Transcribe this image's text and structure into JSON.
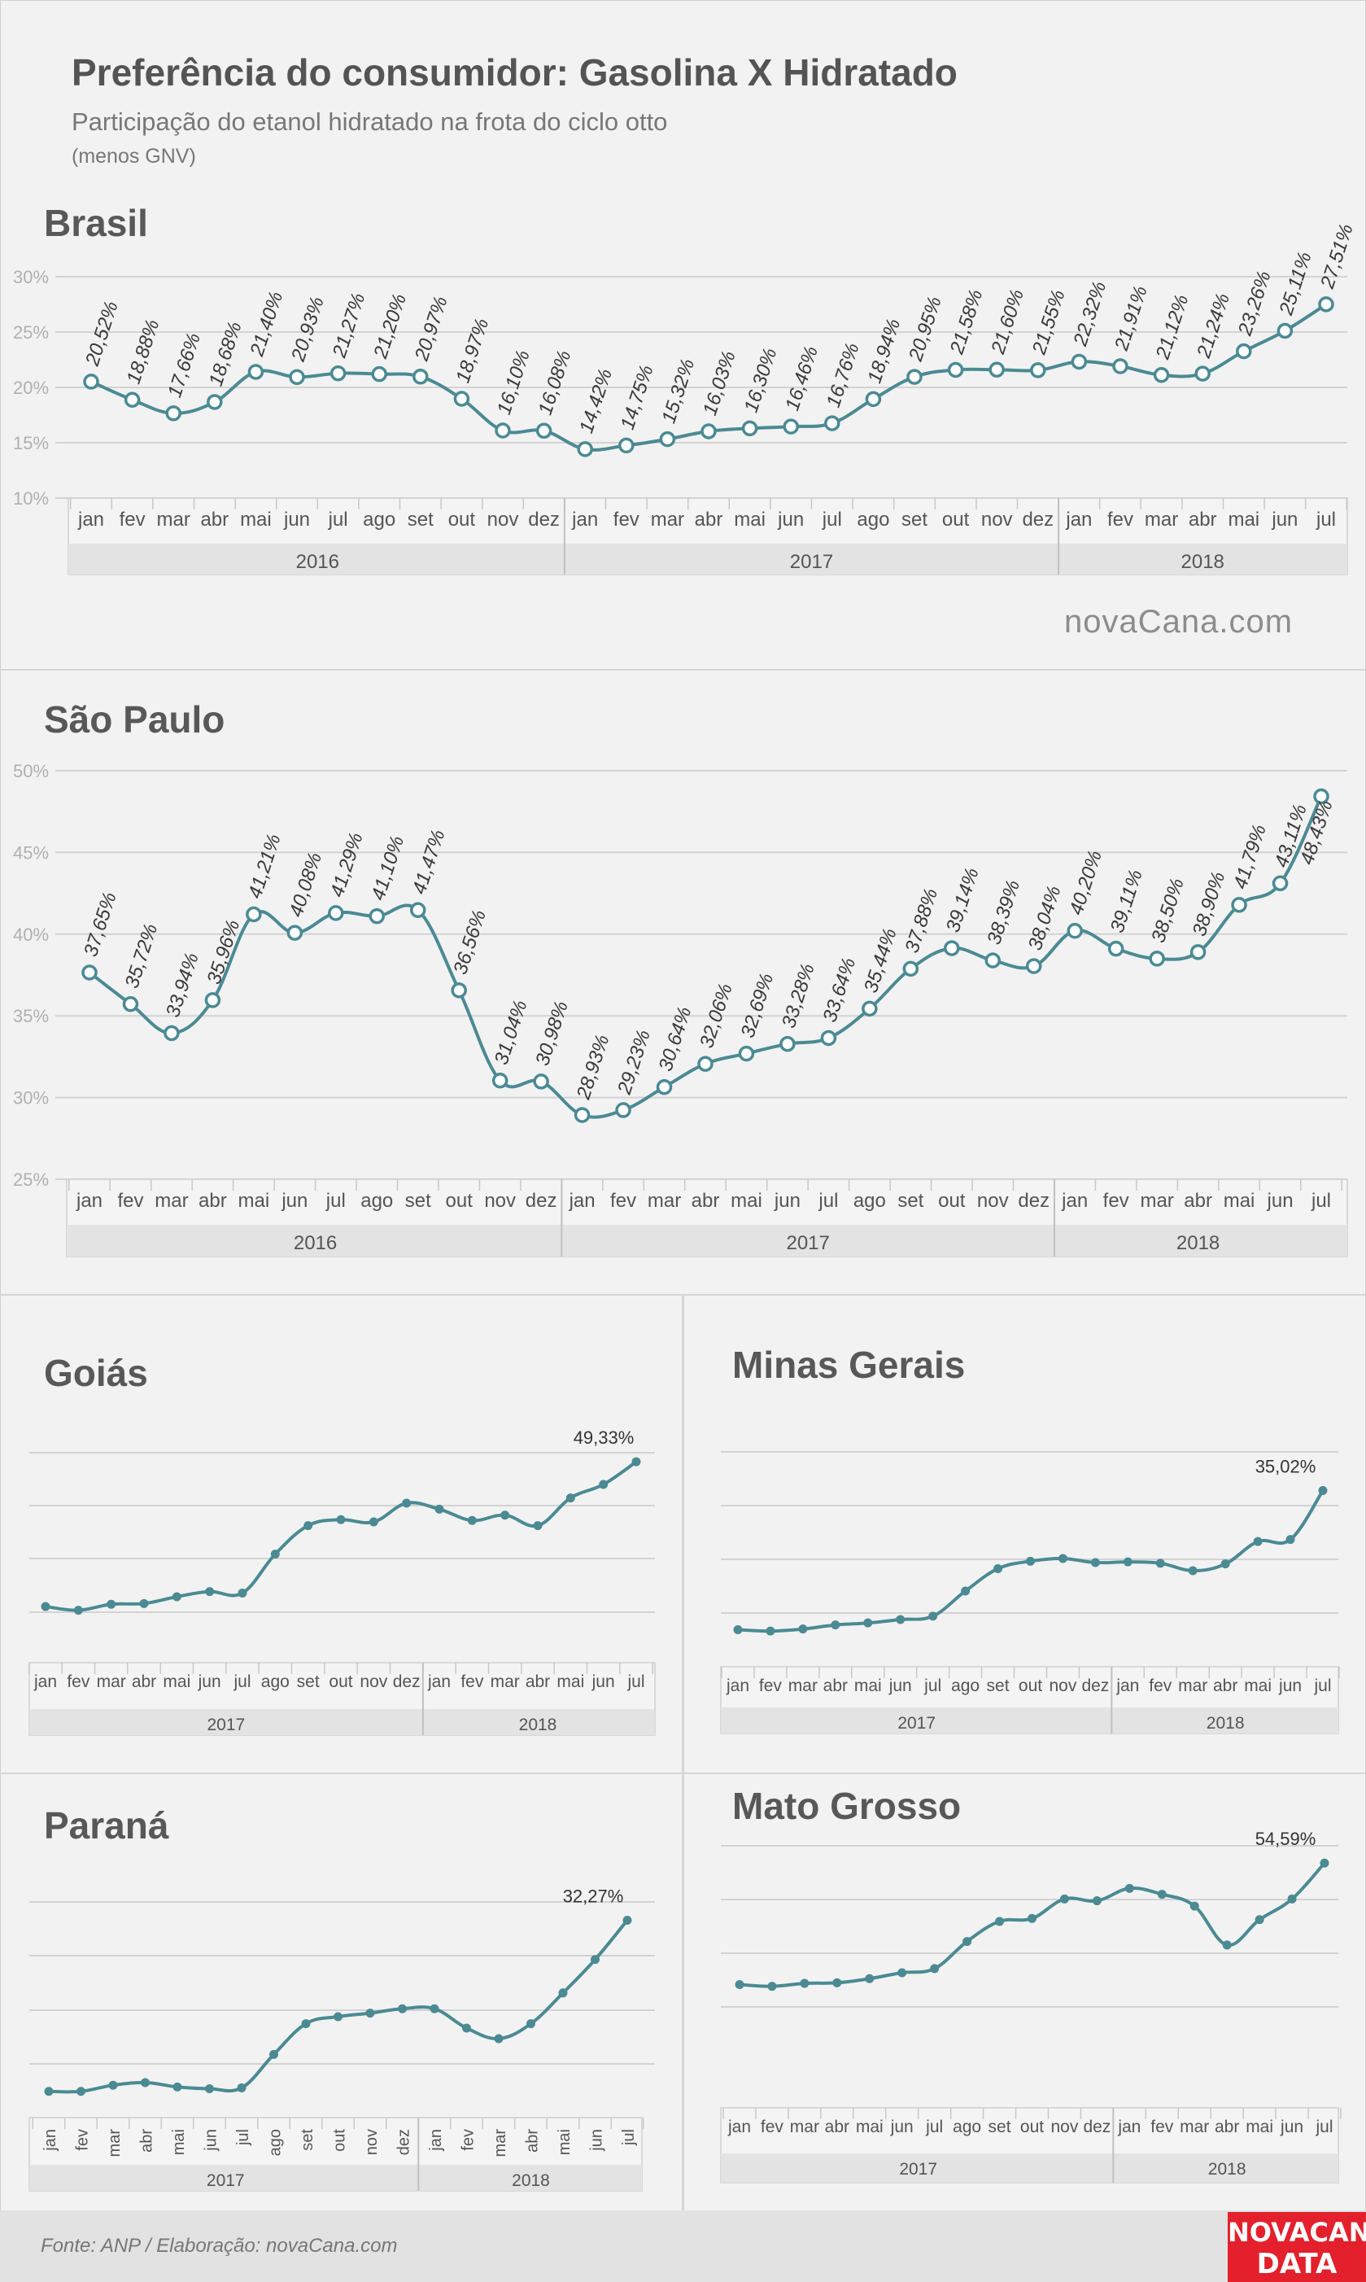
{
  "header": {
    "title": "Preferência do consumidor: Gasolina X Hidratado",
    "subtitle": "Participação do etanol hidratado na frota do ciclo otto",
    "note": "(menos GNV)"
  },
  "watermark": "novaCana.com",
  "footer": {
    "source": "Fonte: ANP  / Elaboração: novaCana.com",
    "logo_line1": "NOVACANA",
    "logo_line2": "DATA"
  },
  "colors": {
    "line": "#4b8a93",
    "marker_fill": "#ffffff",
    "grid": "#d3d3d3",
    "axis_band": "#e3e3e3",
    "logo_bg": "#e3202b"
  },
  "chart_data": [
    {
      "region": "Brasil",
      "type": "line",
      "months": [
        "jan",
        "fev",
        "mar",
        "abr",
        "mai",
        "jun",
        "jul",
        "ago",
        "set",
        "out",
        "nov",
        "dez",
        "jan",
        "fev",
        "mar",
        "abr",
        "mai",
        "jun",
        "jul",
        "ago",
        "set",
        "out",
        "nov",
        "dez",
        "jan",
        "fev",
        "mar",
        "abr",
        "mai",
        "jun",
        "jul"
      ],
      "years": [
        {
          "label": "2016",
          "count": 12
        },
        {
          "label": "2017",
          "count": 12
        },
        {
          "label": "2018",
          "count": 7
        }
      ],
      "values": [
        20.52,
        18.88,
        17.66,
        18.68,
        21.4,
        20.93,
        21.27,
        21.2,
        20.97,
        18.97,
        16.1,
        16.08,
        14.42,
        14.75,
        15.32,
        16.03,
        16.3,
        16.46,
        16.76,
        18.94,
        20.95,
        21.58,
        21.6,
        21.55,
        22.32,
        21.91,
        21.12,
        21.24,
        23.26,
        25.11,
        27.51
      ],
      "labels": [
        "20,52%",
        "18,88%",
        "17,66%",
        "18,68%",
        "21,40%",
        "20,93%",
        "21,27%",
        "21,20%",
        "20,97%",
        "18,97%",
        "16,10%",
        "16,08%",
        "14,42%",
        "14,75%",
        "15,32%",
        "16,03%",
        "16,30%",
        "16,46%",
        "16,76%",
        "18,94%",
        "20,95%",
        "21,58%",
        "21,60%",
        "21,55%",
        "22,32%",
        "21,91%",
        "21,12%",
        "21,24%",
        "23,26%",
        "25,11%",
        "27,51%"
      ],
      "yticks": [
        "10%",
        "15%",
        "20%",
        "25%",
        "30%"
      ],
      "ylim": [
        10,
        30
      ]
    },
    {
      "region": "São Paulo",
      "type": "line",
      "months": [
        "jan",
        "fev",
        "mar",
        "abr",
        "mai",
        "jun",
        "jul",
        "ago",
        "set",
        "out",
        "nov",
        "dez",
        "jan",
        "fev",
        "mar",
        "abr",
        "mai",
        "jun",
        "jul",
        "ago",
        "set",
        "out",
        "nov",
        "dez",
        "jan",
        "fev",
        "mar",
        "abr",
        "mai",
        "jun",
        "jul"
      ],
      "years": [
        {
          "label": "2016",
          "count": 12
        },
        {
          "label": "2017",
          "count": 12
        },
        {
          "label": "2018",
          "count": 7
        }
      ],
      "values": [
        37.65,
        35.72,
        33.94,
        35.96,
        41.21,
        40.08,
        41.29,
        41.1,
        41.47,
        36.56,
        31.04,
        30.98,
        28.93,
        29.23,
        30.64,
        32.06,
        32.69,
        33.28,
        33.64,
        35.44,
        37.88,
        39.14,
        38.39,
        38.04,
        40.2,
        39.11,
        38.5,
        38.9,
        41.79,
        43.11,
        48.43
      ],
      "labels": [
        "37,65%",
        "35,72%",
        "33,94%",
        "35,96%",
        "41,21%",
        "40,08%",
        "41,29%",
        "41,10%",
        "41,47%",
        "36,56%",
        "31,04%",
        "30,98%",
        "28,93%",
        "29,23%",
        "30,64%",
        "32,06%",
        "32,69%",
        "33,28%",
        "33,64%",
        "35,44%",
        "37,88%",
        "39,14%",
        "38,39%",
        "38,04%",
        "40,20%",
        "39,11%",
        "38,50%",
        "38,90%",
        "41,79%",
        "43,11%",
        "48,43%"
      ],
      "yticks": [
        "25%",
        "30%",
        "35%",
        "40%",
        "45%",
        "50%"
      ],
      "ylim": [
        25,
        50
      ]
    },
    {
      "region": "Goiás",
      "type": "line",
      "months": [
        "jan",
        "fev",
        "mar",
        "abr",
        "mai",
        "jun",
        "jul",
        "ago",
        "set",
        "out",
        "nov",
        "dez",
        "jan",
        "fev",
        "mar",
        "abr",
        "mai",
        "jun",
        "jul"
      ],
      "years": [
        {
          "label": "2017",
          "count": 12
        },
        {
          "label": "2018",
          "count": 7
        }
      ],
      "values": [
        30.0,
        29.5,
        30.3,
        30.4,
        31.3,
        32.0,
        31.8,
        37.0,
        40.8,
        41.6,
        41.3,
        43.8,
        43.0,
        41.5,
        42.2,
        40.8,
        44.5,
        46.3,
        49.33
      ],
      "last_label": "49,33%"
    },
    {
      "region": "Minas Gerais",
      "type": "line",
      "months": [
        "jan",
        "fev",
        "mar",
        "abr",
        "mai",
        "jun",
        "jul",
        "ago",
        "set",
        "out",
        "nov",
        "dez",
        "jan",
        "fev",
        "mar",
        "abr",
        "mai",
        "jun",
        "jul"
      ],
      "years": [
        {
          "label": "2017",
          "count": 12
        },
        {
          "label": "2018",
          "count": 7
        }
      ],
      "values": [
        14.5,
        14.3,
        14.6,
        15.2,
        15.5,
        16.0,
        16.5,
        20.2,
        23.5,
        24.6,
        25.0,
        24.4,
        24.5,
        24.3,
        23.2,
        24.2,
        27.5,
        27.8,
        35.02
      ],
      "last_label": "35,02%"
    },
    {
      "region": "Paraná",
      "type": "line",
      "months": [
        "jan",
        "fev",
        "mar",
        "abr",
        "mai",
        "jun",
        "jul",
        "ago",
        "set",
        "out",
        "nov",
        "dez",
        "jan",
        "fev",
        "mar",
        "abr",
        "mai",
        "jun",
        "jul"
      ],
      "years": [
        {
          "label": "2017",
          "count": 12
        },
        {
          "label": "2018",
          "count": 7
        }
      ],
      "values": [
        12.8,
        12.8,
        13.5,
        13.8,
        13.3,
        13.1,
        13.2,
        17.0,
        20.5,
        21.3,
        21.7,
        22.2,
        22.2,
        20.0,
        18.8,
        20.5,
        24.0,
        27.8,
        32.27
      ],
      "last_label": "32,27%"
    },
    {
      "region": "Mato Grosso",
      "type": "line",
      "months": [
        "jan",
        "fev",
        "mar",
        "abr",
        "mai",
        "jun",
        "jul",
        "ago",
        "set",
        "out",
        "nov",
        "dez",
        "jan",
        "fev",
        "mar",
        "abr",
        "mai",
        "jun",
        "jul"
      ],
      "years": [
        {
          "label": "2017",
          "count": 12
        },
        {
          "label": "2018",
          "count": 7
        }
      ],
      "values": [
        34.0,
        33.7,
        34.2,
        34.3,
        35.0,
        36.0,
        36.7,
        41.3,
        44.7,
        45.2,
        48.5,
        48.2,
        50.3,
        49.3,
        47.3,
        40.7,
        45.0,
        48.5,
        54.59
      ],
      "last_label": "54,59%"
    }
  ]
}
